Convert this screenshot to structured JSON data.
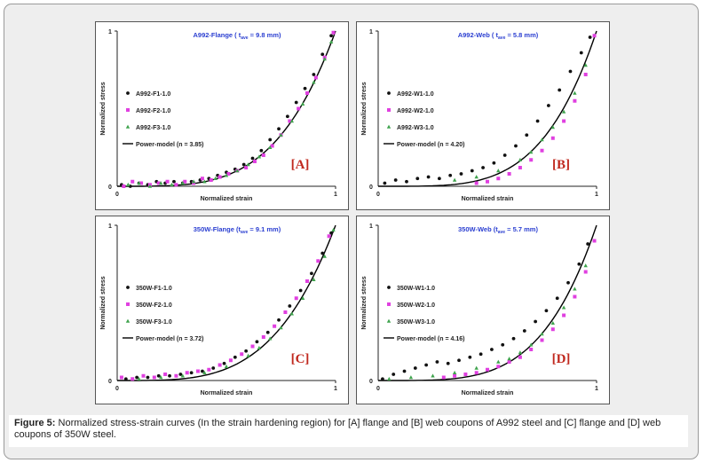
{
  "figure": {
    "caption_label": "Figure 5:",
    "caption_text": " Normalized stress-strain curves (In the strain hardening region) for [A] flange and [B] web coupons of A992 steel and [C] flange and [D] web coupons of 350W steel."
  },
  "chart_data": [
    {
      "type": "scatter",
      "panel_label": "[A]",
      "title": "A992-Flange ( tave = 9.8 mm)",
      "title_parts": [
        "A992-Flange ( t",
        "ave",
        " = 9.8 mm)"
      ],
      "xlabel": "Normalized strain",
      "ylabel": "Normalized stress",
      "xlim": [
        0,
        1
      ],
      "ylim": [
        0,
        1
      ],
      "x_ticks": [
        "0",
        "1"
      ],
      "y_ticks": [
        "0",
        "1"
      ],
      "series": [
        {
          "name": "A992-F1-1.0",
          "color": "#111111",
          "marker": "dot",
          "x": [
            0.02,
            0.06,
            0.1,
            0.14,
            0.18,
            0.22,
            0.26,
            0.3,
            0.34,
            0.38,
            0.42,
            0.46,
            0.5,
            0.54,
            0.58,
            0.62,
            0.66,
            0.7,
            0.74,
            0.78,
            0.82,
            0.86,
            0.9,
            0.94,
            0.98
          ],
          "y": [
            0.01,
            0.0,
            0.02,
            0.01,
            0.03,
            0.02,
            0.03,
            0.02,
            0.03,
            0.04,
            0.05,
            0.07,
            0.09,
            0.11,
            0.14,
            0.18,
            0.23,
            0.3,
            0.37,
            0.45,
            0.54,
            0.63,
            0.72,
            0.85,
            0.97
          ]
        },
        {
          "name": "A992-F2-1.0",
          "color": "#e040e0",
          "marker": "square",
          "x": [
            0.03,
            0.07,
            0.11,
            0.15,
            0.19,
            0.23,
            0.27,
            0.31,
            0.35,
            0.39,
            0.43,
            0.47,
            0.51,
            0.55,
            0.59,
            0.63,
            0.67,
            0.71,
            0.75,
            0.79,
            0.83,
            0.87,
            0.91,
            0.95,
            0.99
          ],
          "y": [
            0.0,
            0.03,
            0.02,
            0.01,
            0.02,
            0.03,
            0.01,
            0.03,
            0.02,
            0.05,
            0.04,
            0.06,
            0.08,
            0.1,
            0.12,
            0.16,
            0.2,
            0.26,
            0.33,
            0.42,
            0.5,
            0.6,
            0.7,
            0.83,
            0.99
          ]
        },
        {
          "name": "A992-F3-1.0",
          "color": "#3fa34d",
          "marker": "triangle",
          "x": [
            0.05,
            0.1,
            0.15,
            0.2,
            0.25,
            0.3,
            0.35,
            0.4,
            0.45,
            0.5,
            0.55,
            0.6,
            0.65,
            0.7,
            0.75,
            0.8,
            0.85,
            0.9,
            0.95,
            0.98
          ],
          "y": [
            0.01,
            0.02,
            0.0,
            0.02,
            0.01,
            0.02,
            0.03,
            0.03,
            0.05,
            0.07,
            0.1,
            0.14,
            0.19,
            0.25,
            0.33,
            0.42,
            0.53,
            0.67,
            0.82,
            0.93
          ]
        }
      ],
      "model": {
        "name": "Power-model (n = 3.85)",
        "n": 3.85,
        "color": "#000000"
      }
    },
    {
      "type": "scatter",
      "panel_label": "[B]",
      "title": "A992-Web ( tave = 5.8 mm)",
      "title_parts": [
        "A992-Web ( t",
        "ave",
        " = 5.8 mm)"
      ],
      "xlabel": "Normalized strain",
      "ylabel": "Normalized stress",
      "xlim": [
        0,
        1
      ],
      "ylim": [
        0,
        1
      ],
      "x_ticks": [
        "0",
        "1"
      ],
      "y_ticks": [
        "0",
        "1"
      ],
      "series": [
        {
          "name": "A992-W1-1.0",
          "color": "#111111",
          "marker": "dot",
          "x": [
            0.03,
            0.08,
            0.13,
            0.18,
            0.23,
            0.28,
            0.33,
            0.38,
            0.43,
            0.48,
            0.53,
            0.58,
            0.63,
            0.68,
            0.73,
            0.78,
            0.83,
            0.88,
            0.93,
            0.97
          ],
          "y": [
            0.02,
            0.04,
            0.03,
            0.05,
            0.06,
            0.05,
            0.07,
            0.08,
            0.1,
            0.12,
            0.15,
            0.2,
            0.26,
            0.33,
            0.42,
            0.52,
            0.62,
            0.74,
            0.86,
            0.96
          ]
        },
        {
          "name": "A992-W2-1.0",
          "color": "#e040e0",
          "marker": "square",
          "x": [
            0.45,
            0.5,
            0.55,
            0.6,
            0.65,
            0.7,
            0.75,
            0.8,
            0.85,
            0.9,
            0.95,
            0.99
          ],
          "y": [
            0.02,
            0.03,
            0.05,
            0.08,
            0.12,
            0.17,
            0.23,
            0.31,
            0.42,
            0.55,
            0.72,
            0.97
          ]
        },
        {
          "name": "A992-W3-1.0",
          "color": "#3fa34d",
          "marker": "triangle",
          "x": [
            0.35,
            0.45,
            0.55,
            0.65,
            0.7,
            0.75,
            0.8,
            0.85,
            0.9,
            0.95
          ],
          "y": [
            0.04,
            0.06,
            0.1,
            0.17,
            0.22,
            0.3,
            0.38,
            0.48,
            0.6,
            0.78
          ]
        }
      ],
      "model": {
        "name": "Power-model (n = 4.20)",
        "n": 4.2,
        "color": "#000000"
      }
    },
    {
      "type": "scatter",
      "panel_label": "[C]",
      "title": "350W-Flange (tave = 9.1 mm)",
      "title_parts": [
        "350W-Flange (t",
        "ave",
        " = 9.1 mm)"
      ],
      "xlabel": "Normalized strain",
      "ylabel": "Normalized stress",
      "xlim": [
        0,
        1
      ],
      "ylim": [
        0,
        1
      ],
      "x_ticks": [
        "0",
        "1"
      ],
      "y_ticks": [
        "0",
        "1"
      ],
      "series": [
        {
          "name": "350W-F1-1.0",
          "color": "#111111",
          "marker": "dot",
          "x": [
            0.04,
            0.09,
            0.14,
            0.19,
            0.24,
            0.29,
            0.34,
            0.39,
            0.44,
            0.49,
            0.54,
            0.59,
            0.64,
            0.69,
            0.74,
            0.79,
            0.84,
            0.89,
            0.94,
            0.98
          ],
          "y": [
            0.01,
            0.02,
            0.02,
            0.03,
            0.03,
            0.04,
            0.05,
            0.06,
            0.08,
            0.11,
            0.15,
            0.19,
            0.25,
            0.31,
            0.39,
            0.48,
            0.58,
            0.69,
            0.82,
            0.95
          ]
        },
        {
          "name": "350W-F2-1.0",
          "color": "#e040e0",
          "marker": "square",
          "x": [
            0.02,
            0.07,
            0.12,
            0.17,
            0.22,
            0.27,
            0.32,
            0.37,
            0.42,
            0.47,
            0.52,
            0.57,
            0.62,
            0.67,
            0.72,
            0.77,
            0.82,
            0.87,
            0.92,
            0.97
          ],
          "y": [
            0.02,
            0.01,
            0.03,
            0.02,
            0.04,
            0.03,
            0.05,
            0.06,
            0.07,
            0.1,
            0.13,
            0.17,
            0.22,
            0.28,
            0.35,
            0.44,
            0.53,
            0.64,
            0.77,
            0.93
          ]
        },
        {
          "name": "350W-F3-1.0",
          "color": "#3fa34d",
          "marker": "triangle",
          "x": [
            0.1,
            0.2,
            0.3,
            0.4,
            0.5,
            0.6,
            0.65,
            0.7,
            0.75,
            0.8,
            0.85,
            0.9,
            0.95,
            0.99
          ],
          "y": [
            0.01,
            0.02,
            0.03,
            0.05,
            0.09,
            0.16,
            0.21,
            0.27,
            0.34,
            0.43,
            0.53,
            0.65,
            0.8,
            0.97
          ]
        }
      ],
      "model": {
        "name": "Power-model (n = 3.72)",
        "n": 3.72,
        "color": "#000000"
      }
    },
    {
      "type": "scatter",
      "panel_label": "[D]",
      "title": "350W-Web (tave = 5.7 mm)",
      "title_parts": [
        "350W-Web (t",
        "ave",
        " = 5.7 mm)"
      ],
      "xlabel": "Normalized strain",
      "ylabel": "Normalized stress",
      "xlim": [
        0,
        1
      ],
      "ylim": [
        0,
        1
      ],
      "x_ticks": [
        "0",
        "1"
      ],
      "y_ticks": [
        "0",
        "1"
      ],
      "series": [
        {
          "name": "350W-W1-1.0",
          "color": "#111111",
          "marker": "dot",
          "x": [
            0.02,
            0.07,
            0.12,
            0.17,
            0.22,
            0.27,
            0.32,
            0.37,
            0.42,
            0.47,
            0.52,
            0.57,
            0.62,
            0.67,
            0.72,
            0.77,
            0.82,
            0.87,
            0.92,
            0.96
          ],
          "y": [
            0.01,
            0.04,
            0.06,
            0.08,
            0.1,
            0.12,
            0.11,
            0.13,
            0.15,
            0.17,
            0.2,
            0.23,
            0.27,
            0.32,
            0.38,
            0.45,
            0.53,
            0.63,
            0.75,
            0.88
          ]
        },
        {
          "name": "350W-W2-1.0",
          "color": "#e040e0",
          "marker": "square",
          "x": [
            0.3,
            0.35,
            0.4,
            0.45,
            0.5,
            0.55,
            0.6,
            0.65,
            0.7,
            0.75,
            0.8,
            0.85,
            0.9,
            0.95,
            0.99
          ],
          "y": [
            0.02,
            0.03,
            0.04,
            0.05,
            0.07,
            0.09,
            0.12,
            0.15,
            0.2,
            0.26,
            0.33,
            0.42,
            0.54,
            0.7,
            0.9
          ]
        },
        {
          "name": "350W-W3-1.0",
          "color": "#3fa34d",
          "marker": "triangle",
          "x": [
            0.05,
            0.15,
            0.25,
            0.35,
            0.45,
            0.55,
            0.6,
            0.65,
            0.7,
            0.75,
            0.8,
            0.85,
            0.9,
            0.95
          ],
          "y": [
            0.01,
            0.02,
            0.03,
            0.05,
            0.08,
            0.12,
            0.14,
            0.18,
            0.23,
            0.3,
            0.37,
            0.47,
            0.59,
            0.74
          ]
        }
      ],
      "model": {
        "name": "Power-model (n = 4.16)",
        "n": 4.16,
        "color": "#000000"
      }
    }
  ]
}
